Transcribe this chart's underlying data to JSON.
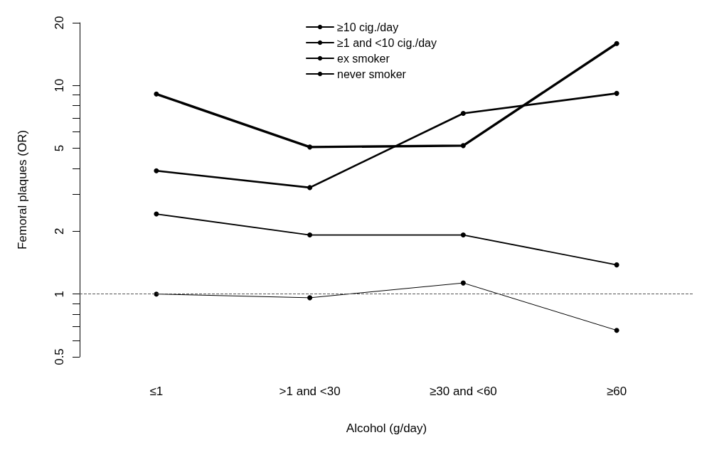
{
  "chart_data": {
    "type": "line",
    "xlabel": "Alcohol (g/day)",
    "ylabel": "Femoral plaques (OR)",
    "categories": [
      "≤1",
      ">1 and <30",
      "≥30 and <60",
      "≥60"
    ],
    "series": [
      {
        "name": "≥10 cig./day",
        "color": "#000000",
        "values": [
          9.1,
          5.07,
          5.15,
          15.9
        ]
      },
      {
        "name": "≥1 and <10 cig./day",
        "color": "#000000",
        "values": [
          3.9,
          3.24,
          7.35,
          9.17
        ]
      },
      {
        "name": "ex smoker",
        "color": "#000000",
        "values": [
          2.42,
          1.92,
          1.92,
          1.38
        ]
      },
      {
        "name": "never smoker",
        "color": "#000000",
        "values": [
          1,
          0.96,
          1.13,
          0.67
        ]
      }
    ],
    "log": "y",
    "ylim": [
      0.5,
      20
    ],
    "yticks": [
      0.5,
      {
        "value": 0.6,
        "label": null
      },
      {
        "value": 0.7,
        "label": null
      },
      {
        "value": 0.8,
        "label": null
      },
      {
        "value": 0.9,
        "label": null
      },
      1,
      2,
      {
        "value": 3,
        "label": null
      },
      {
        "value": 4,
        "label": null
      },
      5,
      {
        "value": 6,
        "label": null
      },
      {
        "value": 7,
        "label": null
      },
      {
        "value": 8,
        "label": null
      },
      {
        "value": 9,
        "label": null
      },
      10,
      20
    ],
    "ref_lines": [
      {
        "axis": "y",
        "value": 1,
        "label": null,
        "color": "#555555",
        "line_style": "dashed"
      }
    ],
    "marker": "circle",
    "line_style": "solid",
    "legend": "top",
    "grid": false
  }
}
